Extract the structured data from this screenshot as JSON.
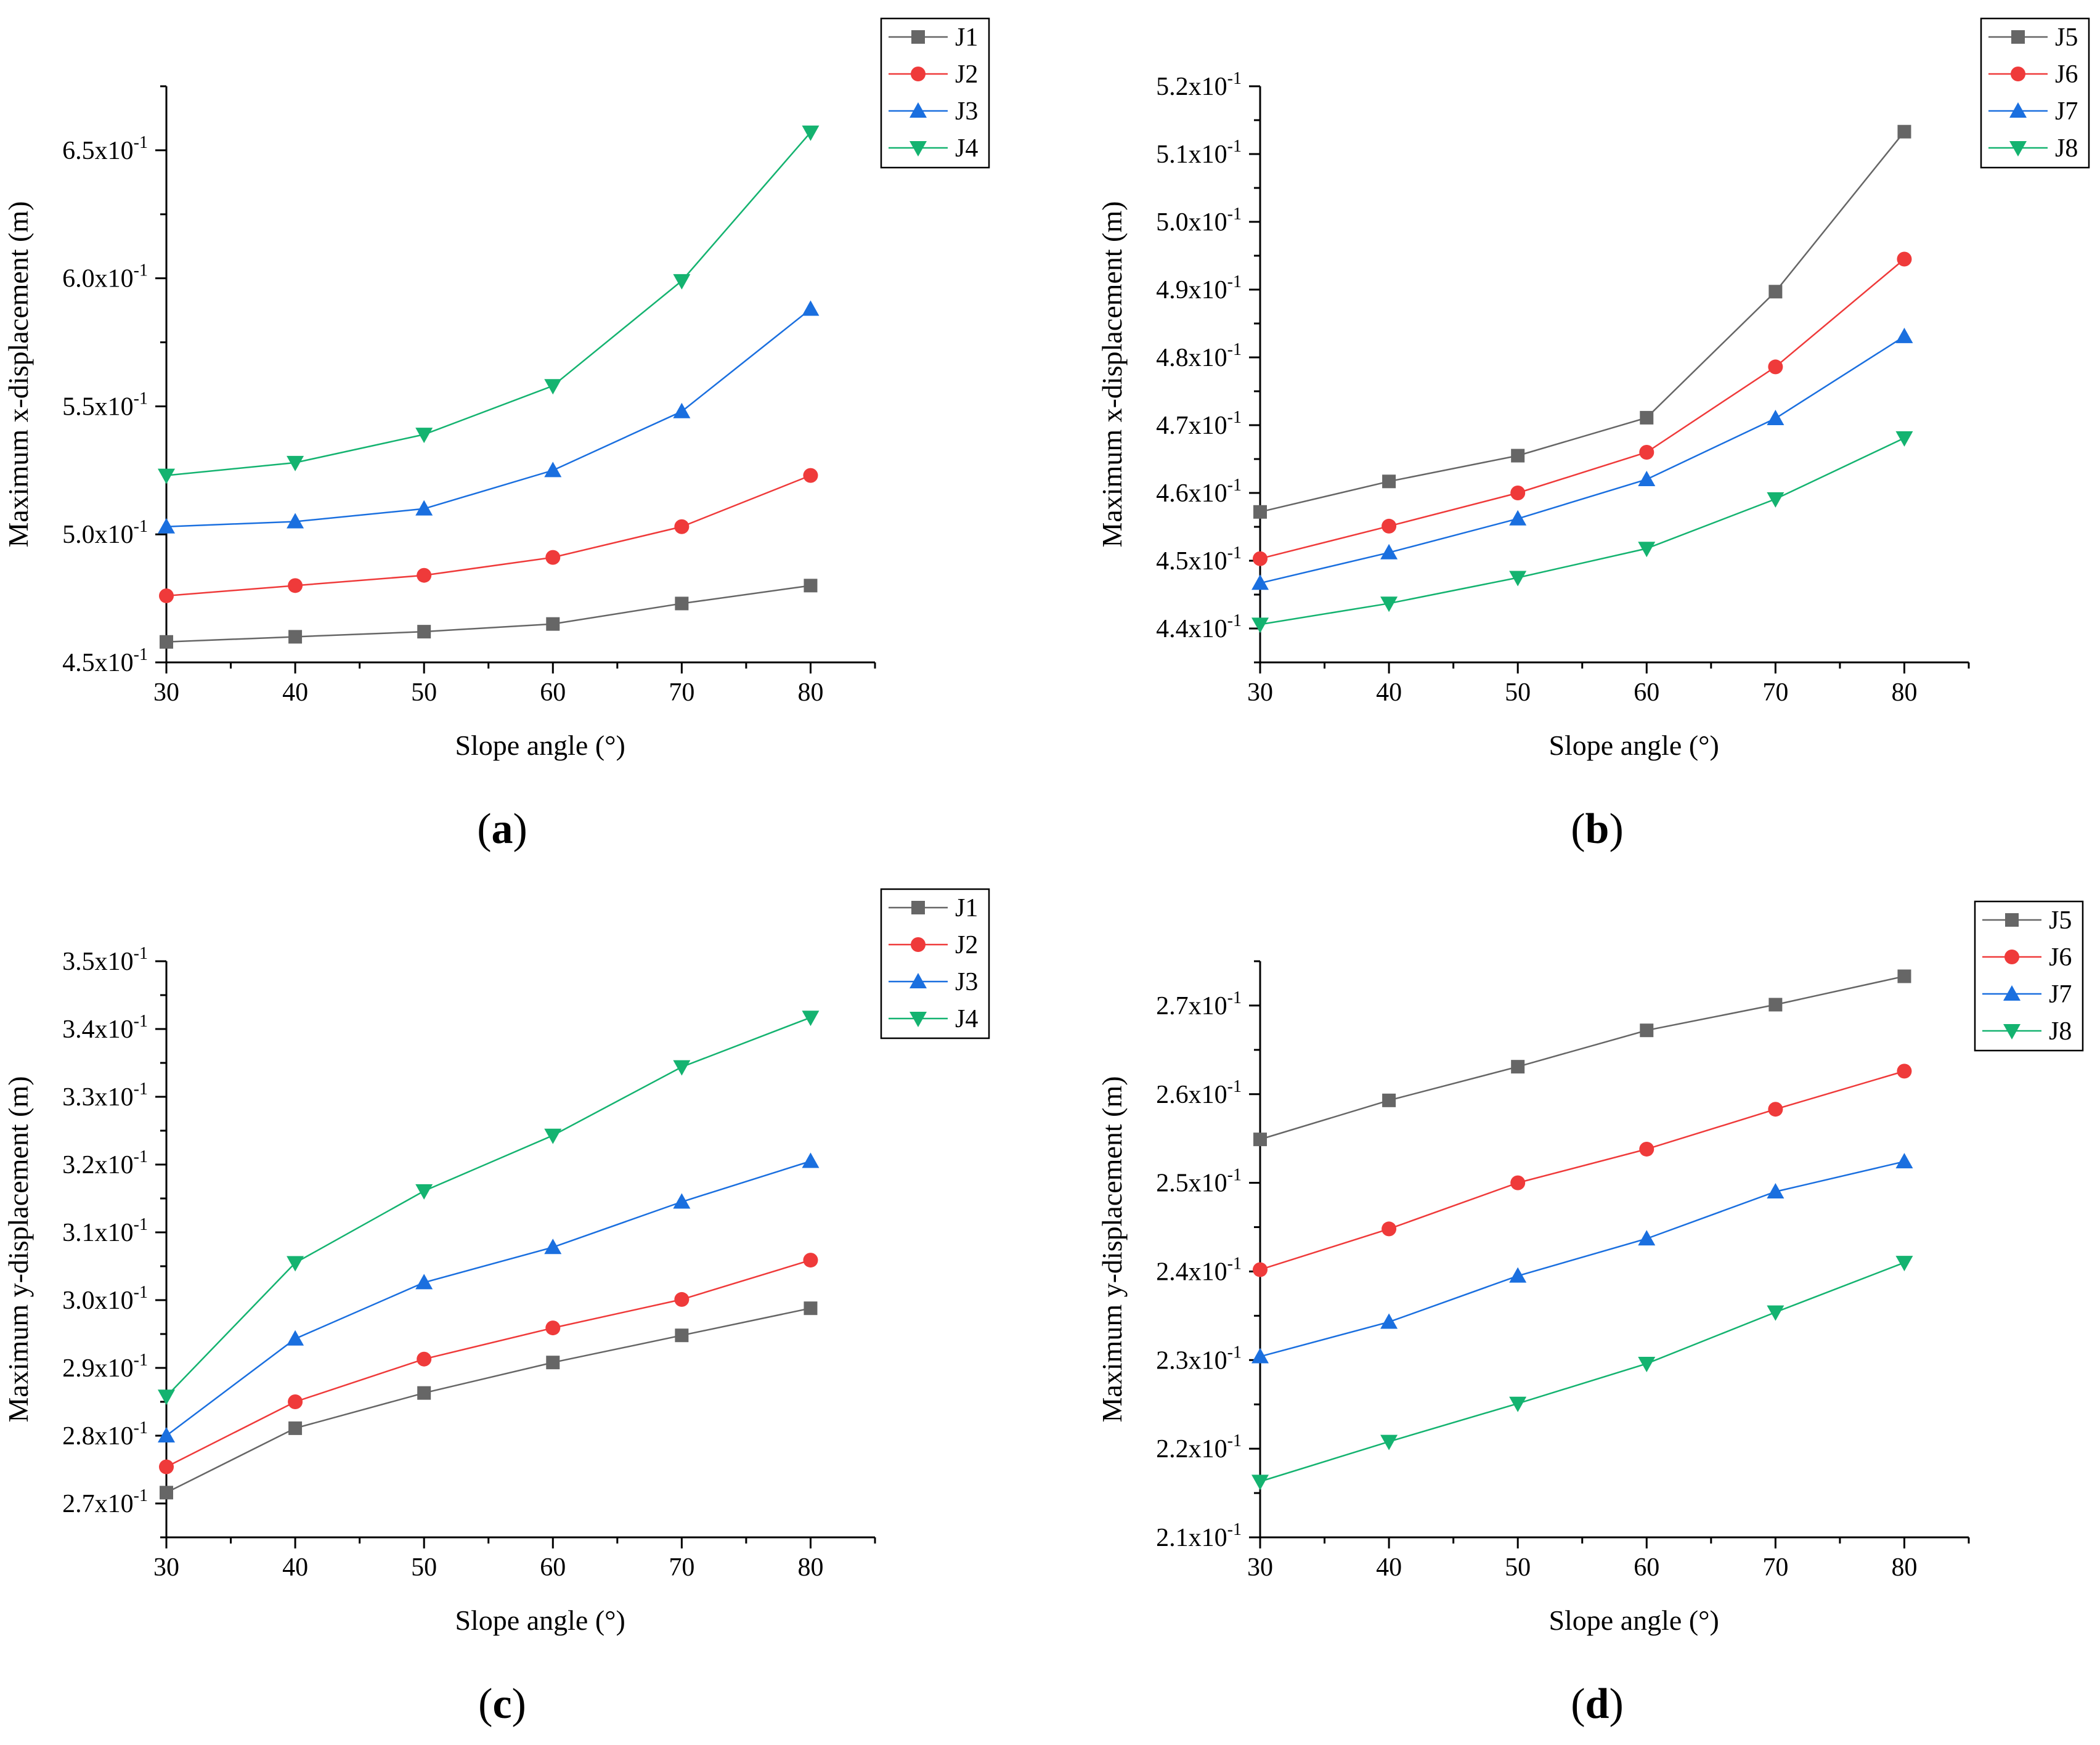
{
  "figure": {
    "panels": [
      {
        "id": "a",
        "label": "a"
      },
      {
        "id": "b",
        "label": "b"
      },
      {
        "id": "c",
        "label": "c"
      },
      {
        "id": "d",
        "label": "d"
      }
    ]
  },
  "chart_data": [
    {
      "panel": "a",
      "type": "line",
      "xlabel": "Slope angle (°)",
      "ylabel": "Maximum x-displacement (m)",
      "x": [
        30,
        40,
        50,
        60,
        70,
        80
      ],
      "xlim": [
        30,
        85
      ],
      "xticks": [
        30,
        40,
        50,
        60,
        70,
        80
      ],
      "ylim": [
        0.45,
        0.675
      ],
      "yticks": [
        0.45,
        0.5,
        0.55,
        0.6,
        0.65
      ],
      "ytick_labels": [
        {
          "mantissa": "4.5x10",
          "exp": "-1"
        },
        {
          "mantissa": "5.0x10",
          "exp": "-1"
        },
        {
          "mantissa": "5.5x10",
          "exp": "-1"
        },
        {
          "mantissa": "6.0x10",
          "exp": "-1"
        },
        {
          "mantissa": "6.5x10",
          "exp": "-1"
        }
      ],
      "legend_position": "top-right",
      "series": [
        {
          "name": "J1",
          "marker": "square",
          "color": "#666666",
          "values": [
            0.458,
            0.46,
            0.462,
            0.465,
            0.473,
            0.48
          ]
        },
        {
          "name": "J2",
          "marker": "circle",
          "color": "#ef3a3a",
          "values": [
            0.476,
            0.48,
            0.484,
            0.491,
            0.503,
            0.523
          ]
        },
        {
          "name": "J3",
          "marker": "triangle-up",
          "color": "#1a6fdf",
          "values": [
            0.503,
            0.505,
            0.51,
            0.525,
            0.548,
            0.588
          ]
        },
        {
          "name": "J4",
          "marker": "triangle-down",
          "color": "#14b370",
          "values": [
            0.523,
            0.528,
            0.539,
            0.558,
            0.599,
            0.657
          ]
        }
      ]
    },
    {
      "panel": "b",
      "type": "line",
      "xlabel": "Slope angle (°)",
      "ylabel": "Maximum x-displacement (m)",
      "x": [
        30,
        40,
        50,
        60,
        70,
        80
      ],
      "xlim": [
        30,
        85
      ],
      "xticks": [
        30,
        40,
        50,
        60,
        70,
        80
      ],
      "ylim": [
        0.435,
        0.52
      ],
      "yticks": [
        0.44,
        0.45,
        0.46,
        0.47,
        0.48,
        0.49,
        0.5,
        0.51,
        0.52
      ],
      "ytick_labels": [
        {
          "mantissa": "4.4x10",
          "exp": "-1"
        },
        {
          "mantissa": "4.5x10",
          "exp": "-1"
        },
        {
          "mantissa": "4.6x10",
          "exp": "-1"
        },
        {
          "mantissa": "4.7x10",
          "exp": "-1"
        },
        {
          "mantissa": "4.8x10",
          "exp": "-1"
        },
        {
          "mantissa": "4.9x10",
          "exp": "-1"
        },
        {
          "mantissa": "5.0x10",
          "exp": "-1"
        },
        {
          "mantissa": "5.1x10",
          "exp": "-1"
        },
        {
          "mantissa": "5.2x10",
          "exp": "-1"
        }
      ],
      "legend_position": "top-right",
      "series": [
        {
          "name": "J5",
          "marker": "square",
          "color": "#666666",
          "values": [
            0.4572,
            0.4617,
            0.4655,
            0.4711,
            0.4897,
            0.5133
          ]
        },
        {
          "name": "J6",
          "marker": "circle",
          "color": "#ef3a3a",
          "values": [
            0.4503,
            0.4551,
            0.46,
            0.466,
            0.4786,
            0.4945
          ]
        },
        {
          "name": "J7",
          "marker": "triangle-up",
          "color": "#1a6fdf",
          "values": [
            0.4467,
            0.4512,
            0.4562,
            0.462,
            0.471,
            0.4831
          ]
        },
        {
          "name": "J8",
          "marker": "triangle-down",
          "color": "#14b370",
          "values": [
            0.4406,
            0.4437,
            0.4475,
            0.4518,
            0.4591,
            0.4681
          ]
        }
      ]
    },
    {
      "panel": "c",
      "type": "line",
      "xlabel": "Slope angle (°)",
      "ylabel": "Maximum y-displacement (m)",
      "x": [
        30,
        40,
        50,
        60,
        70,
        80
      ],
      "xlim": [
        30,
        85
      ],
      "xticks": [
        30,
        40,
        50,
        60,
        70,
        80
      ],
      "ylim": [
        0.265,
        0.35
      ],
      "yticks": [
        0.27,
        0.28,
        0.29,
        0.3,
        0.31,
        0.32,
        0.33,
        0.34,
        0.35
      ],
      "ytick_labels": [
        {
          "mantissa": "2.7x10",
          "exp": "-1"
        },
        {
          "mantissa": "2.8x10",
          "exp": "-1"
        },
        {
          "mantissa": "2.9x10",
          "exp": "-1"
        },
        {
          "mantissa": "3.0x10",
          "exp": "-1"
        },
        {
          "mantissa": "3.1x10",
          "exp": "-1"
        },
        {
          "mantissa": "3.2x10",
          "exp": "-1"
        },
        {
          "mantissa": "3.3x10",
          "exp": "-1"
        },
        {
          "mantissa": "3.4x10",
          "exp": "-1"
        },
        {
          "mantissa": "3.5x10",
          "exp": "-1"
        }
      ],
      "legend_position": "top-right",
      "series": [
        {
          "name": "J1",
          "marker": "square",
          "color": "#666666",
          "values": [
            0.2716,
            0.2811,
            0.2863,
            0.2908,
            0.2948,
            0.2988
          ]
        },
        {
          "name": "J2",
          "marker": "circle",
          "color": "#ef3a3a",
          "values": [
            0.2754,
            0.285,
            0.2913,
            0.2959,
            0.3001,
            0.3059
          ]
        },
        {
          "name": "J3",
          "marker": "triangle-up",
          "color": "#1a6fdf",
          "values": [
            0.28,
            0.2943,
            0.3026,
            0.3078,
            0.3145,
            0.3205
          ]
        },
        {
          "name": "J4",
          "marker": "triangle-down",
          "color": "#14b370",
          "values": [
            0.2858,
            0.3055,
            0.3161,
            0.3243,
            0.3344,
            0.3417
          ]
        }
      ]
    },
    {
      "panel": "d",
      "type": "line",
      "xlabel": "Slope angle (°)",
      "ylabel": "Maximum y-displacement (m)",
      "x": [
        30,
        40,
        50,
        60,
        70,
        80
      ],
      "xlim": [
        30,
        85
      ],
      "xticks": [
        30,
        40,
        50,
        60,
        70,
        80
      ],
      "ylim": [
        0.21,
        0.275
      ],
      "yticks": [
        0.21,
        0.22,
        0.23,
        0.24,
        0.25,
        0.26,
        0.27
      ],
      "ytick_labels": [
        {
          "mantissa": "2.1x10",
          "exp": "-1"
        },
        {
          "mantissa": "2.2x10",
          "exp": "-1"
        },
        {
          "mantissa": "2.3x10",
          "exp": "-1"
        },
        {
          "mantissa": "2.4x10",
          "exp": "-1"
        },
        {
          "mantissa": "2.5x10",
          "exp": "-1"
        },
        {
          "mantissa": "2.6x10",
          "exp": "-1"
        },
        {
          "mantissa": "2.7x10",
          "exp": "-1"
        }
      ],
      "legend_position": "top-right",
      "series": [
        {
          "name": "J5",
          "marker": "square",
          "color": "#666666",
          "values": [
            0.2549,
            0.2593,
            0.2631,
            0.2672,
            0.2701,
            0.2733
          ]
        },
        {
          "name": "J6",
          "marker": "circle",
          "color": "#ef3a3a",
          "values": [
            0.2402,
            0.2448,
            0.25,
            0.2538,
            0.2583,
            0.2626
          ]
        },
        {
          "name": "J7",
          "marker": "triangle-up",
          "color": "#1a6fdf",
          "values": [
            0.2304,
            0.2343,
            0.2395,
            0.2437,
            0.249,
            0.2524
          ]
        },
        {
          "name": "J8",
          "marker": "triangle-down",
          "color": "#14b370",
          "values": [
            0.2163,
            0.2208,
            0.2251,
            0.2296,
            0.2354,
            0.241
          ]
        }
      ]
    }
  ]
}
